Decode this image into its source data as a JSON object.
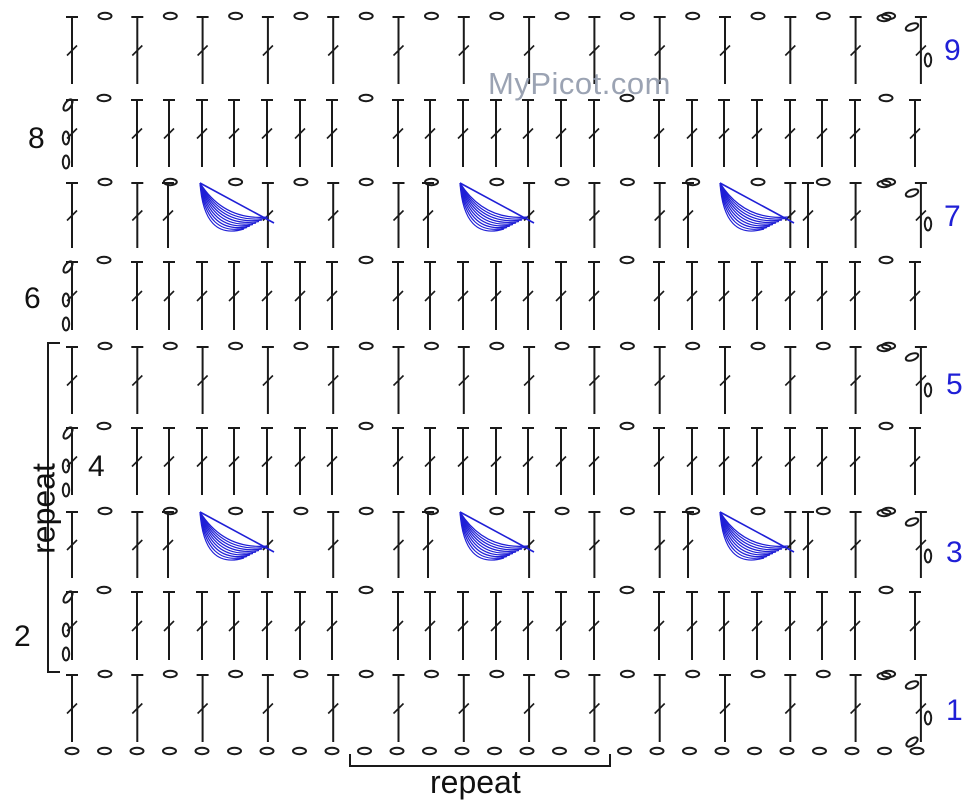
{
  "watermark": "MyPicot.com",
  "repeat_labels": {
    "horizontal": "repeat",
    "vertical": "repeat"
  },
  "row_numbers": [
    {
      "label": "1",
      "color": "blue"
    },
    {
      "label": "2",
      "color": "black"
    },
    {
      "label": "3",
      "color": "blue"
    },
    {
      "label": "4",
      "color": "black"
    },
    {
      "label": "5",
      "color": "blue"
    },
    {
      "label": "6",
      "color": "black"
    },
    {
      "label": "7",
      "color": "blue"
    },
    {
      "label": "8",
      "color": "black"
    },
    {
      "label": "9",
      "color": "blue"
    }
  ],
  "colors": {
    "stitch": "#1a1a1a",
    "accent_blue": "#1f1fd6",
    "background": "#ffffff"
  },
  "symbols": [
    "chain-oval",
    "double-crochet",
    "shell-fan"
  ]
}
